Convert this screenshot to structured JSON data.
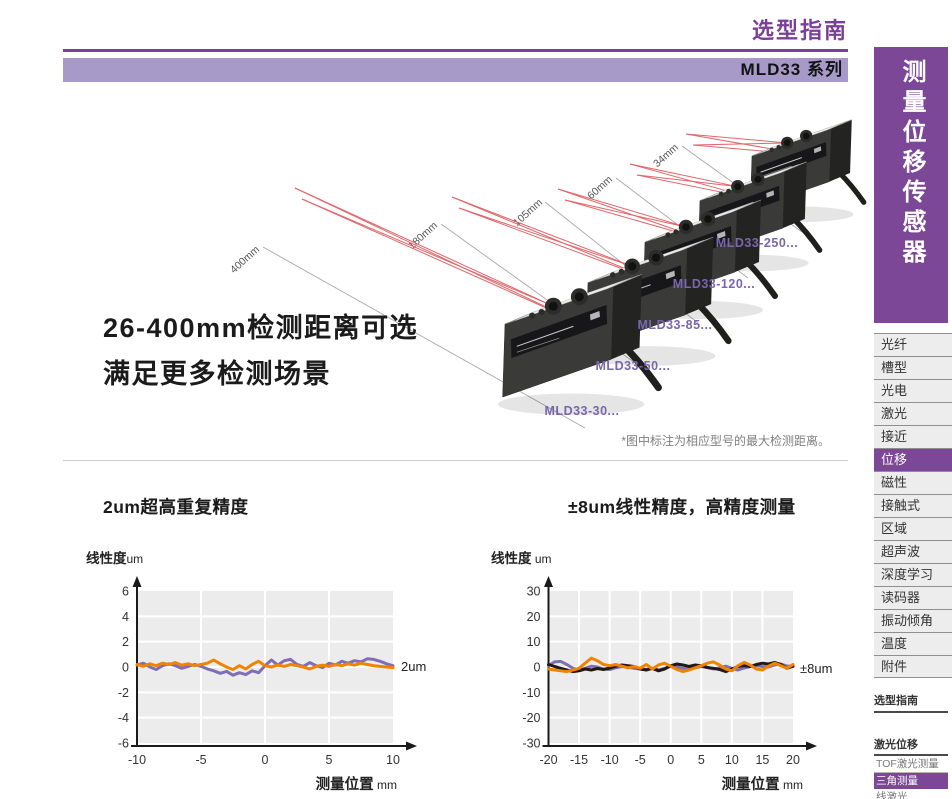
{
  "page": {
    "top_title": "选型指南",
    "series_banner": "MLD33 系列",
    "headline_line1": "26-400mm检测距离可选",
    "headline_line2": "满足更多检测场景",
    "figure_note": "*图中标注为相应型号的最大检测距离。"
  },
  "colors": {
    "accent_purple": "#7b4796",
    "light_purple": "#a79ac9",
    "laser_red": "#e0666b",
    "series_purple": "#7e6fb5",
    "series_orange": "#f08300",
    "series_black": "#231815",
    "model_label_purple": "#7767ae"
  },
  "figure": {
    "sensors": [
      {
        "model": "MLD33-30...",
        "distance": "400mm"
      },
      {
        "model": "MLD33-50...",
        "distance": "180mm"
      },
      {
        "model": "MLD33-85...",
        "distance": "105mm"
      },
      {
        "model": "MLD33-120...",
        "distance": "60mm"
      },
      {
        "model": "MLD33-250...",
        "distance": "34mm"
      }
    ]
  },
  "sidebar": {
    "vertical_title": "测量位移传感器",
    "items": [
      {
        "label": "光纤",
        "active": false
      },
      {
        "label": "槽型",
        "active": false
      },
      {
        "label": "光电",
        "active": false
      },
      {
        "label": "激光",
        "active": false
      },
      {
        "label": "接近",
        "active": false
      },
      {
        "label": "位移",
        "active": true
      },
      {
        "label": "磁性",
        "active": false
      },
      {
        "label": "接触式",
        "active": false
      },
      {
        "label": "区域",
        "active": false
      },
      {
        "label": "超声波",
        "active": false
      },
      {
        "label": "深度学习",
        "active": false
      },
      {
        "label": "读码器",
        "active": false
      },
      {
        "label": "振动倾角",
        "active": false
      },
      {
        "label": "温度",
        "active": false
      },
      {
        "label": "附件",
        "active": false
      }
    ],
    "guide_link": "选型指南",
    "sub_group_title": "激光位移",
    "sub_items": [
      {
        "label": "TOF激光测量",
        "active": false
      },
      {
        "label": "三角测量",
        "active": true
      },
      {
        "label": "线激光",
        "active": false
      }
    ]
  },
  "chart_data": [
    {
      "type": "line",
      "title": "2um超高重复精度",
      "ylabel": "线性度",
      "ylabel_unit": "um",
      "xlabel": "测量位置",
      "xlabel_unit": " mm",
      "annotation": "2um",
      "xlim": [
        -10,
        10
      ],
      "ylim": [
        -6,
        6
      ],
      "x_ticks": [
        -10,
        -5,
        0,
        5,
        10
      ],
      "y_ticks": [
        6,
        4,
        2,
        0,
        -2,
        -4,
        -6
      ],
      "grid": true,
      "legend": "none",
      "series": [
        {
          "name": "trace-purple",
          "color": "#7e6fb5",
          "x": [
            -10,
            -9.5,
            -9,
            -8.5,
            -8,
            -7.5,
            -7,
            -6.5,
            -6,
            -5.5,
            -5,
            -4.5,
            -4,
            -3.5,
            -3,
            -2.5,
            -2,
            -1.5,
            -1,
            -0.5,
            0,
            0.5,
            1,
            1.5,
            2,
            2.5,
            3,
            3.5,
            4,
            4.5,
            5,
            5.5,
            6,
            6.5,
            7,
            7.5,
            8,
            8.5,
            9,
            9.5,
            10
          ],
          "y": [
            0.15,
            0.3,
            0,
            -0.2,
            0.1,
            0.25,
            0.1,
            -0.1,
            0.05,
            0.2,
            0.05,
            -0.15,
            -0.3,
            -0.5,
            -0.35,
            -0.65,
            -0.45,
            -0.6,
            -0.3,
            -0.45,
            0.1,
            0.55,
            0.15,
            0.5,
            0.6,
            0.2,
            0.05,
            0.35,
            0.1,
            -0.05,
            0.3,
            0.15,
            0.45,
            0.3,
            0.5,
            0.4,
            0.65,
            0.6,
            0.45,
            0.25,
            0.1
          ]
        },
        {
          "name": "trace-orange",
          "color": "#f08300",
          "x": [
            -10,
            -9.5,
            -9,
            -8.5,
            -8,
            -7.5,
            -7,
            -6.5,
            -6,
            -5.5,
            -5,
            -4.5,
            -4,
            -3.5,
            -3,
            -2.5,
            -2,
            -1.5,
            -1,
            -0.5,
            0,
            0.5,
            1,
            1.5,
            2,
            2.5,
            3,
            3.5,
            4,
            4.5,
            5,
            5.5,
            6,
            6.5,
            7,
            7.5,
            8,
            8.5,
            9,
            9.5,
            10
          ],
          "y": [
            0.2,
            0.05,
            0.25,
            0.1,
            0.3,
            0.2,
            0.35,
            0.15,
            0.25,
            0.1,
            0.2,
            0.3,
            0.55,
            0.25,
            0,
            -0.2,
            0.1,
            -0.15,
            0.2,
            0.45,
            0.1,
            0,
            0.15,
            0.05,
            0.2,
            0.1,
            0,
            -0.15,
            0.05,
            0.15,
            0.05,
            0.2,
            0.1,
            0.25,
            0.15,
            0.3,
            0.2,
            0.1,
            0.05,
            0,
            -0.05
          ]
        }
      ]
    },
    {
      "type": "line",
      "title": "±8um线性精度，高精度测量",
      "ylabel": "线性度",
      "ylabel_unit": " um",
      "xlabel": "测量位置",
      "xlabel_unit": " mm",
      "annotation": "±8um",
      "xlim": [
        -20,
        20
      ],
      "ylim": [
        -30,
        30
      ],
      "x_ticks": [
        -20,
        -15,
        -10,
        -5,
        0,
        5,
        10,
        15,
        20
      ],
      "y_ticks": [
        30,
        20,
        10,
        0,
        -10,
        -20,
        -30
      ],
      "grid": true,
      "legend": "none",
      "series": [
        {
          "name": "trace-purple",
          "color": "#7e6fb5",
          "x": [
            -20,
            -19,
            -18,
            -17,
            -16,
            -15,
            -14,
            -13,
            -12,
            -11,
            -10,
            -9,
            -8,
            -7,
            -6,
            -5,
            -4,
            -3,
            -2,
            -1,
            0,
            1,
            2,
            3,
            4,
            5,
            6,
            7,
            8,
            9,
            10,
            11,
            12,
            13,
            14,
            15,
            16,
            17,
            18,
            19,
            20
          ],
          "y": [
            0.5,
            2,
            2.2,
            1,
            -0.5,
            -1.2,
            -0.5,
            0.3,
            0,
            -0.8,
            -1,
            -0.3,
            0.2,
            0,
            -0.5,
            -0.8,
            -1,
            -0.5,
            -1.2,
            -0.5,
            0.3,
            0,
            -0.5,
            -1,
            -0.3,
            0.2,
            -0.2,
            -0.8,
            -0.3,
            0.3,
            -0.5,
            -1.2,
            -0.4,
            0.2,
            0.5,
            0.2,
            0,
            0.8,
            1.2,
            0.4,
            0.2
          ]
        },
        {
          "name": "trace-black",
          "color": "#231815",
          "x": [
            -20,
            -19,
            -18,
            -17,
            -16,
            -15,
            -14,
            -13,
            -12,
            -11,
            -10,
            -9,
            -8,
            -7,
            -6,
            -5,
            -4,
            -3,
            -2,
            -1,
            0,
            1,
            2,
            3,
            4,
            5,
            6,
            7,
            8,
            9,
            10,
            11,
            12,
            13,
            14,
            15,
            16,
            17,
            18,
            19,
            20
          ],
          "y": [
            1,
            0.2,
            -0.5,
            -1.2,
            -1.8,
            -1.5,
            -0.8,
            -1.2,
            -0.6,
            -1,
            -0.4,
            0.3,
            0.8,
            0.5,
            0.2,
            -0.8,
            -1.2,
            -0.5,
            -1.5,
            -0.8,
            0.5,
            1.2,
            0.8,
            0.2,
            0.8,
            0.5,
            -0.2,
            -0.5,
            -1,
            -1.8,
            -0.8,
            0.2,
            0.5,
            0.2,
            1,
            1.5,
            1.2,
            1.8,
            1,
            -0.5,
            0.3
          ]
        },
        {
          "name": "trace-orange",
          "color": "#f08300",
          "x": [
            -20,
            -19,
            -18,
            -17,
            -16,
            -15,
            -14,
            -13,
            -12,
            -11,
            -10,
            -9,
            -8,
            -7,
            -6,
            -5,
            -4,
            -3,
            -2,
            -1,
            0,
            1,
            2,
            3,
            4,
            5,
            6,
            7,
            8,
            9,
            10,
            11,
            12,
            13,
            14,
            15,
            16,
            17,
            18,
            19,
            20
          ],
          "y": [
            -0.8,
            -1.2,
            -1.5,
            -1.8,
            -1.2,
            -0.5,
            1.5,
            3.5,
            2.5,
            1,
            0.5,
            1,
            0.3,
            -0.3,
            0.2,
            -0.5,
            1,
            -0.8,
            0.8,
            1.5,
            0.3,
            -1,
            -1.8,
            -1.2,
            -0.3,
            0.5,
            1.5,
            2,
            0.8,
            -0.8,
            -1.5,
            0.5,
            1.8,
            0.8,
            -0.8,
            -1.2,
            0.3,
            1.5,
            0.5,
            -0.5,
            1
          ]
        }
      ]
    }
  ]
}
